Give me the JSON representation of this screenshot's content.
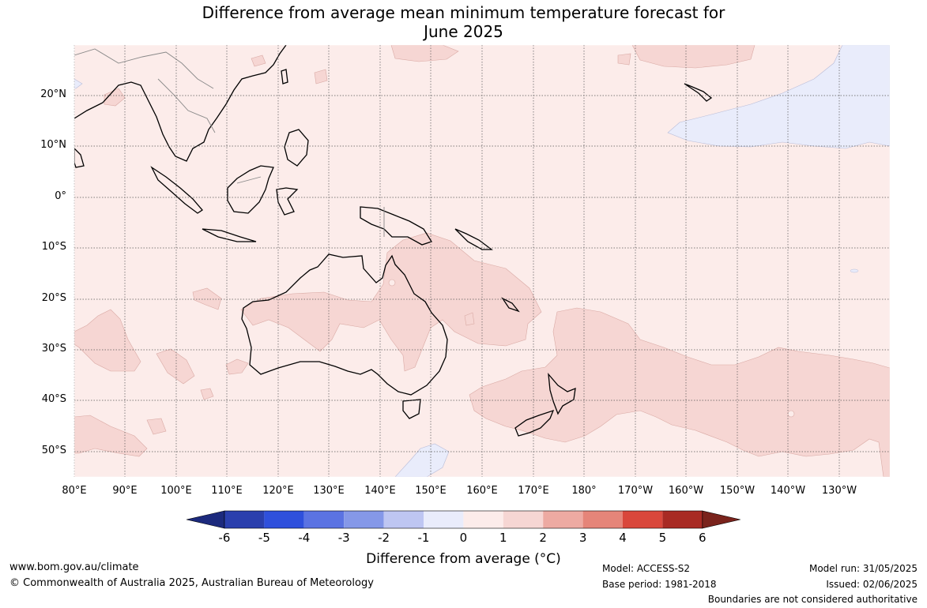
{
  "title_line1": "Difference from average mean minimum temperature forecast for",
  "title_line2": "June 2025",
  "lat_labels": [
    "20°N",
    "10°N",
    "0°",
    "10°S",
    "20°S",
    "30°S",
    "40°S",
    "50°S"
  ],
  "lon_labels": [
    "80°E",
    "90°E",
    "100°E",
    "110°E",
    "120°E",
    "130°E",
    "140°E",
    "150°E",
    "160°E",
    "170°E",
    "180°",
    "170°W",
    "160°W",
    "150°W",
    "140°W",
    "130°W"
  ],
  "colorbar": {
    "ticks": [
      "-6",
      "-5",
      "-4",
      "-3",
      "-2",
      "-1",
      "0",
      "1",
      "2",
      "3",
      "4",
      "5",
      "6"
    ],
    "colors": [
      "#1c2a7d",
      "#2a3fad",
      "#2f50dc",
      "#5b73e2",
      "#8598e8",
      "#bec6f2",
      "#e9ecfb",
      "#fcecea",
      "#f6d6d3",
      "#edaaa2",
      "#e58579",
      "#d9473b",
      "#a82a23",
      "#7a231c"
    ],
    "title": "Difference from average (°C)"
  },
  "footer": {
    "website": "www.bom.gov.au/climate",
    "copyright": "© Commonwealth of Australia 2025, Australian Bureau of Meteorology",
    "model": "Model: ACCESS-S2",
    "base_period": "Base period: 1981-2018",
    "model_run": "Model run: 31/05/2025",
    "issued": "Issued: 02/06/2025",
    "disclaimer": "Boundaries are not considered authoritative"
  }
}
